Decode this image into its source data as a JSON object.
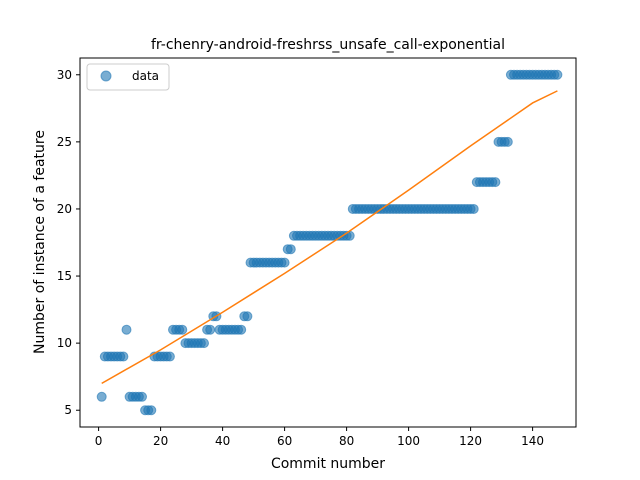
{
  "chart_data": {
    "type": "scatter",
    "title": "fr-chenry-android-freshrss_unsafe_call-exponential",
    "xlabel": "Commit number",
    "ylabel": "Number of instance of a feature",
    "xlim": [
      -6,
      154
    ],
    "ylim": [
      3.75,
      31.25
    ],
    "xticks": [
      0,
      20,
      40,
      60,
      80,
      100,
      120,
      140
    ],
    "yticks": [
      5,
      10,
      15,
      20,
      25,
      30
    ],
    "grid": false,
    "legend_position": "top-left",
    "series": [
      {
        "name": "data",
        "kind": "scatter",
        "color": "#1f77b4",
        "points": [
          [
            1,
            6
          ],
          [
            2,
            9
          ],
          [
            3,
            9
          ],
          [
            4,
            9
          ],
          [
            5,
            9
          ],
          [
            6,
            9
          ],
          [
            7,
            9
          ],
          [
            8,
            9
          ],
          [
            9,
            11
          ],
          [
            10,
            6
          ],
          [
            11,
            6
          ],
          [
            12,
            6
          ],
          [
            13,
            6
          ],
          [
            14,
            6
          ],
          [
            15,
            5
          ],
          [
            16,
            5
          ],
          [
            17,
            5
          ],
          [
            18,
            9
          ],
          [
            19,
            9
          ],
          [
            20,
            9
          ],
          [
            21,
            9
          ],
          [
            22,
            9
          ],
          [
            23,
            9
          ],
          [
            24,
            11
          ],
          [
            25,
            11
          ],
          [
            26,
            11
          ],
          [
            27,
            11
          ],
          [
            28,
            10
          ],
          [
            29,
            10
          ],
          [
            30,
            10
          ],
          [
            31,
            10
          ],
          [
            32,
            10
          ],
          [
            33,
            10
          ],
          [
            34,
            10
          ],
          [
            35,
            11
          ],
          [
            36,
            11
          ],
          [
            37,
            12
          ],
          [
            38,
            12
          ],
          [
            39,
            11
          ],
          [
            40,
            11
          ],
          [
            41,
            11
          ],
          [
            42,
            11
          ],
          [
            43,
            11
          ],
          [
            44,
            11
          ],
          [
            45,
            11
          ],
          [
            46,
            11
          ],
          [
            47,
            12
          ],
          [
            48,
            12
          ],
          [
            49,
            16
          ],
          [
            50,
            16
          ],
          [
            51,
            16
          ],
          [
            52,
            16
          ],
          [
            53,
            16
          ],
          [
            54,
            16
          ],
          [
            55,
            16
          ],
          [
            56,
            16
          ],
          [
            57,
            16
          ],
          [
            58,
            16
          ],
          [
            59,
            16
          ],
          [
            60,
            16
          ],
          [
            61,
            17
          ],
          [
            62,
            17
          ],
          [
            63,
            18
          ],
          [
            64,
            18
          ],
          [
            65,
            18
          ],
          [
            66,
            18
          ],
          [
            67,
            18
          ],
          [
            68,
            18
          ],
          [
            69,
            18
          ],
          [
            70,
            18
          ],
          [
            71,
            18
          ],
          [
            72,
            18
          ],
          [
            73,
            18
          ],
          [
            74,
            18
          ],
          [
            75,
            18
          ],
          [
            76,
            18
          ],
          [
            77,
            18
          ],
          [
            78,
            18
          ],
          [
            79,
            18
          ],
          [
            80,
            18
          ],
          [
            81,
            18
          ],
          [
            82,
            20
          ],
          [
            83,
            20
          ],
          [
            84,
            20
          ],
          [
            85,
            20
          ],
          [
            86,
            20
          ],
          [
            87,
            20
          ],
          [
            88,
            20
          ],
          [
            89,
            20
          ],
          [
            90,
            20
          ],
          [
            91,
            20
          ],
          [
            92,
            20
          ],
          [
            93,
            20
          ],
          [
            94,
            20
          ],
          [
            95,
            20
          ],
          [
            96,
            20
          ],
          [
            97,
            20
          ],
          [
            98,
            20
          ],
          [
            99,
            20
          ],
          [
            100,
            20
          ],
          [
            101,
            20
          ],
          [
            102,
            20
          ],
          [
            103,
            20
          ],
          [
            104,
            20
          ],
          [
            105,
            20
          ],
          [
            106,
            20
          ],
          [
            107,
            20
          ],
          [
            108,
            20
          ],
          [
            109,
            20
          ],
          [
            110,
            20
          ],
          [
            111,
            20
          ],
          [
            112,
            20
          ],
          [
            113,
            20
          ],
          [
            114,
            20
          ],
          [
            115,
            20
          ],
          [
            116,
            20
          ],
          [
            117,
            20
          ],
          [
            118,
            20
          ],
          [
            119,
            20
          ],
          [
            120,
            20
          ],
          [
            121,
            20
          ],
          [
            122,
            22
          ],
          [
            123,
            22
          ],
          [
            124,
            22
          ],
          [
            125,
            22
          ],
          [
            126,
            22
          ],
          [
            127,
            22
          ],
          [
            128,
            22
          ],
          [
            129,
            25
          ],
          [
            130,
            25
          ],
          [
            131,
            25
          ],
          [
            132,
            25
          ],
          [
            133,
            30
          ],
          [
            134,
            30
          ],
          [
            135,
            30
          ],
          [
            136,
            30
          ],
          [
            137,
            30
          ],
          [
            138,
            30
          ],
          [
            139,
            30
          ],
          [
            140,
            30
          ],
          [
            141,
            30
          ],
          [
            142,
            30
          ],
          [
            143,
            30
          ],
          [
            144,
            30
          ],
          [
            145,
            30
          ],
          [
            146,
            30
          ],
          [
            147,
            30
          ],
          [
            148,
            30
          ]
        ]
      },
      {
        "name": "",
        "kind": "line",
        "color": "#ff7f0e",
        "points": [
          [
            1,
            7.0
          ],
          [
            20,
            9.5
          ],
          [
            40,
            12.3
          ],
          [
            60,
            15.2
          ],
          [
            80,
            18.2
          ],
          [
            100,
            21.4
          ],
          [
            120,
            24.7
          ],
          [
            140,
            27.9
          ],
          [
            148,
            28.8
          ]
        ]
      }
    ]
  }
}
